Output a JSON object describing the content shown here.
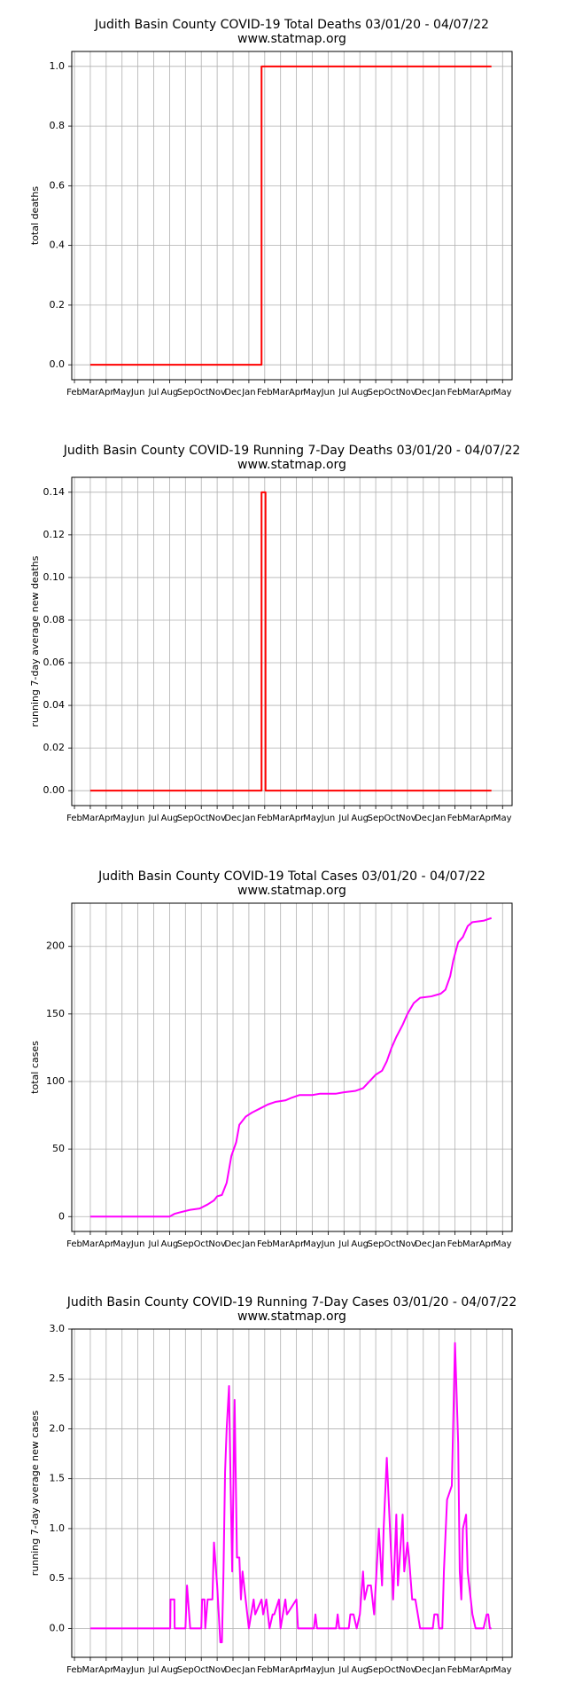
{
  "chart_data": [
    {
      "type": "line",
      "title": "Judith Basin County COVID-19 Total Deaths 03/01/20 - 04/07/22",
      "subtitle": "www.statmap.org",
      "y_label": "total deaths",
      "color": "#ff0000",
      "grid": true,
      "x": [
        1,
        11.8,
        11.8,
        26.3
      ],
      "values": [
        0,
        0,
        1,
        1
      ],
      "xlim": [
        -0.17,
        27.6
      ],
      "ylim": [
        -0.05,
        1.05
      ],
      "xticks": [
        {
          "value": 0,
          "label": "Feb"
        },
        {
          "value": 1,
          "label": "Mar"
        },
        {
          "value": 2,
          "label": "Apr"
        },
        {
          "value": 3,
          "label": "May"
        },
        {
          "value": 4,
          "label": "Jun"
        },
        {
          "value": 5,
          "label": "Jul"
        },
        {
          "value": 6,
          "label": "Aug"
        },
        {
          "value": 7,
          "label": "Sep"
        },
        {
          "value": 8,
          "label": "Oct"
        },
        {
          "value": 9,
          "label": "Nov"
        },
        {
          "value": 10,
          "label": "Dec"
        },
        {
          "value": 11,
          "label": "Jan"
        },
        {
          "value": 12,
          "label": "Feb"
        },
        {
          "value": 13,
          "label": "Mar"
        },
        {
          "value": 14,
          "label": "Apr"
        },
        {
          "value": 15,
          "label": "May"
        },
        {
          "value": 16,
          "label": "Jun"
        },
        {
          "value": 17,
          "label": "Jul"
        },
        {
          "value": 18,
          "label": "Aug"
        },
        {
          "value": 19,
          "label": "Sep"
        },
        {
          "value": 20,
          "label": "Oct"
        },
        {
          "value": 21,
          "label": "Nov"
        },
        {
          "value": 22,
          "label": "Dec"
        },
        {
          "value": 23,
          "label": "Jan"
        },
        {
          "value": 24,
          "label": "Feb"
        },
        {
          "value": 25,
          "label": "Mar"
        },
        {
          "value": 26,
          "label": "Apr"
        },
        {
          "value": 27,
          "label": "May"
        }
      ],
      "yticks": [
        {
          "value": 0,
          "label": "0.0"
        },
        {
          "value": 0.2,
          "label": "0.2"
        },
        {
          "value": 0.4,
          "label": "0.4"
        },
        {
          "value": 0.6,
          "label": "0.6"
        },
        {
          "value": 0.8,
          "label": "0.8"
        },
        {
          "value": 1,
          "label": "1.0"
        }
      ]
    },
    {
      "type": "line",
      "title": "Judith Basin County COVID-19 Running 7-Day Deaths 03/01/20 - 04/07/22",
      "subtitle": "www.statmap.org",
      "y_label": "running 7-day average new deaths",
      "color": "#ff0000",
      "grid": true,
      "x": [
        1,
        11.8,
        11.8,
        12.05,
        12.05,
        26.3
      ],
      "values": [
        0,
        0,
        0.14,
        0.14,
        0,
        0
      ],
      "xlim": [
        -0.17,
        27.6
      ],
      "ylim": [
        -0.007,
        0.147
      ],
      "xticks": [
        {
          "value": 0,
          "label": "Feb"
        },
        {
          "value": 1,
          "label": "Mar"
        },
        {
          "value": 2,
          "label": "Apr"
        },
        {
          "value": 3,
          "label": "May"
        },
        {
          "value": 4,
          "label": "Jun"
        },
        {
          "value": 5,
          "label": "Jul"
        },
        {
          "value": 6,
          "label": "Aug"
        },
        {
          "value": 7,
          "label": "Sep"
        },
        {
          "value": 8,
          "label": "Oct"
        },
        {
          "value": 9,
          "label": "Nov"
        },
        {
          "value": 10,
          "label": "Dec"
        },
        {
          "value": 11,
          "label": "Jan"
        },
        {
          "value": 12,
          "label": "Feb"
        },
        {
          "value": 13,
          "label": "Mar"
        },
        {
          "value": 14,
          "label": "Apr"
        },
        {
          "value": 15,
          "label": "May"
        },
        {
          "value": 16,
          "label": "Jun"
        },
        {
          "value": 17,
          "label": "Jul"
        },
        {
          "value": 18,
          "label": "Aug"
        },
        {
          "value": 19,
          "label": "Sep"
        },
        {
          "value": 20,
          "label": "Oct"
        },
        {
          "value": 21,
          "label": "Nov"
        },
        {
          "value": 22,
          "label": "Dec"
        },
        {
          "value": 23,
          "label": "Jan"
        },
        {
          "value": 24,
          "label": "Feb"
        },
        {
          "value": 25,
          "label": "Mar"
        },
        {
          "value": 26,
          "label": "Apr"
        },
        {
          "value": 27,
          "label": "May"
        }
      ],
      "yticks": [
        {
          "value": 0,
          "label": "0.00"
        },
        {
          "value": 0.02,
          "label": "0.02"
        },
        {
          "value": 0.04,
          "label": "0.04"
        },
        {
          "value": 0.06,
          "label": "0.06"
        },
        {
          "value": 0.08,
          "label": "0.08"
        },
        {
          "value": 0.1,
          "label": "0.10"
        },
        {
          "value": 0.12,
          "label": "0.12"
        },
        {
          "value": 0.14,
          "label": "0.14"
        }
      ]
    },
    {
      "type": "line",
      "title": "Judith Basin County COVID-19 Total Cases 03/01/20 - 04/07/22",
      "subtitle": "www.statmap.org",
      "y_label": "total cases",
      "color": "#ff00ff",
      "grid": true,
      "x": [
        1,
        6.0,
        6.3,
        6.6,
        7.3,
        7.9,
        8.4,
        8.8,
        9.0,
        9.3,
        9.6,
        9.9,
        10.2,
        10.4,
        10.8,
        11.2,
        11.7,
        12.2,
        12.7,
        13.3,
        13.7,
        14.2,
        15.0,
        15.5,
        16.5,
        17.0,
        17.7,
        18.2,
        18.6,
        19.0,
        19.4,
        19.7,
        20.0,
        20.3,
        20.7,
        21.0,
        21.4,
        21.8,
        22.5,
        23.1,
        23.4,
        23.7,
        23.9,
        24.2,
        24.5,
        24.8,
        25.1,
        25.8,
        26.3
      ],
      "values": [
        0,
        0,
        2,
        3,
        5,
        6,
        9,
        12,
        15,
        16,
        25,
        45,
        55,
        68,
        74,
        77,
        80,
        83,
        85,
        86,
        88,
        90,
        90,
        91,
        91,
        92,
        93,
        95,
        100,
        105,
        108,
        115,
        125,
        133,
        142,
        150,
        158,
        162,
        163,
        165,
        168,
        178,
        190,
        203,
        207,
        215,
        218,
        219,
        221
      ],
      "xlim": [
        -0.17,
        27.6
      ],
      "ylim": [
        -11,
        232
      ],
      "xticks": [
        {
          "value": 0,
          "label": "Feb"
        },
        {
          "value": 1,
          "label": "Mar"
        },
        {
          "value": 2,
          "label": "Apr"
        },
        {
          "value": 3,
          "label": "May"
        },
        {
          "value": 4,
          "label": "Jun"
        },
        {
          "value": 5,
          "label": "Jul"
        },
        {
          "value": 6,
          "label": "Aug"
        },
        {
          "value": 7,
          "label": "Sep"
        },
        {
          "value": 8,
          "label": "Oct"
        },
        {
          "value": 9,
          "label": "Nov"
        },
        {
          "value": 10,
          "label": "Dec"
        },
        {
          "value": 11,
          "label": "Jan"
        },
        {
          "value": 12,
          "label": "Feb"
        },
        {
          "value": 13,
          "label": "Mar"
        },
        {
          "value": 14,
          "label": "Apr"
        },
        {
          "value": 15,
          "label": "May"
        },
        {
          "value": 16,
          "label": "Jun"
        },
        {
          "value": 17,
          "label": "Jul"
        },
        {
          "value": 18,
          "label": "Aug"
        },
        {
          "value": 19,
          "label": "Sep"
        },
        {
          "value": 20,
          "label": "Oct"
        },
        {
          "value": 21,
          "label": "Nov"
        },
        {
          "value": 22,
          "label": "Dec"
        },
        {
          "value": 23,
          "label": "Jan"
        },
        {
          "value": 24,
          "label": "Feb"
        },
        {
          "value": 25,
          "label": "Mar"
        },
        {
          "value": 26,
          "label": "Apr"
        },
        {
          "value": 27,
          "label": "May"
        }
      ],
      "yticks": [
        0,
        50,
        100,
        150,
        200
      ]
    },
    {
      "type": "line",
      "title": "Judith Basin County COVID-19 Running 7-Day Cases 03/01/20 - 04/07/22",
      "subtitle": "www.statmap.org",
      "y_label": "running 7-day average new cases",
      "color": "#ff00ff",
      "grid": true,
      "x": [
        1,
        6.04,
        6.06,
        6.3,
        6.32,
        7.0,
        7.1,
        7.3,
        8.0,
        8.05,
        8.2,
        8.25,
        8.4,
        8.7,
        8.8,
        9.0,
        9.2,
        9.3,
        9.4,
        9.5,
        9.6,
        9.75,
        9.85,
        9.95,
        10.1,
        10.25,
        10.4,
        10.5,
        10.6,
        11.0,
        11.3,
        11.4,
        11.8,
        11.9,
        12.1,
        12.3,
        12.5,
        12.6,
        12.9,
        13.0,
        13.3,
        13.4,
        14.0,
        14.1,
        14.6,
        15.1,
        15.2,
        15.3,
        16.5,
        16.6,
        16.7,
        17.3,
        17.4,
        17.6,
        17.8,
        18.0,
        18.2,
        18.3,
        18.5,
        18.7,
        18.9,
        19.2,
        19.4,
        19.5,
        19.7,
        20.1,
        20.3,
        20.4,
        20.7,
        20.8,
        21.0,
        21.1,
        21.3,
        21.5,
        21.8,
        22.1,
        22.6,
        22.7,
        22.9,
        23.0,
        23.2,
        23.3,
        23.5,
        23.8,
        24.0,
        24.2,
        24.3,
        24.4,
        24.5,
        24.7,
        24.8,
        25.1,
        25.3,
        25.8,
        26.0,
        26.1,
        26.2,
        26.3
      ],
      "values": [
        0,
        0,
        0.29,
        0.29,
        0,
        0,
        0.43,
        0,
        0,
        0.29,
        0.29,
        0,
        0.29,
        0.29,
        0.86,
        0.43,
        -0.14,
        -0.14,
        0.57,
        1.57,
        2.0,
        2.43,
        1.43,
        0.57,
        2.29,
        0.71,
        0.71,
        0.29,
        0.57,
        0,
        0.29,
        0.14,
        0.29,
        0.14,
        0.29,
        0,
        0.14,
        0.14,
        0.29,
        0,
        0.29,
        0.14,
        0.29,
        0,
        0,
        0,
        0.14,
        0,
        0,
        0.14,
        0,
        0,
        0.14,
        0.14,
        0,
        0.14,
        0.57,
        0.29,
        0.43,
        0.43,
        0.14,
        1.0,
        0.43,
        1.0,
        1.71,
        0.29,
        1.14,
        0.43,
        1.14,
        0.57,
        0.86,
        0.71,
        0.29,
        0.29,
        0,
        0,
        0,
        0.14,
        0.14,
        0,
        0,
        0.57,
        1.29,
        1.43,
        2.86,
        1.86,
        0.57,
        0.29,
        1.0,
        1.14,
        0.57,
        0.14,
        0,
        0,
        0.14,
        0.14,
        0,
        0
      ],
      "xlim": [
        -0.17,
        27.6
      ],
      "ylim": [
        -0.29,
        3.0
      ],
      "xticks": [
        {
          "value": 0,
          "label": "Feb"
        },
        {
          "value": 1,
          "label": "Mar"
        },
        {
          "value": 2,
          "label": "Apr"
        },
        {
          "value": 3,
          "label": "May"
        },
        {
          "value": 4,
          "label": "Jun"
        },
        {
          "value": 5,
          "label": "Jul"
        },
        {
          "value": 6,
          "label": "Aug"
        },
        {
          "value": 7,
          "label": "Sep"
        },
        {
          "value": 8,
          "label": "Oct"
        },
        {
          "value": 9,
          "label": "Nov"
        },
        {
          "value": 10,
          "label": "Dec"
        },
        {
          "value": 11,
          "label": "Jan"
        },
        {
          "value": 12,
          "label": "Feb"
        },
        {
          "value": 13,
          "label": "Mar"
        },
        {
          "value": 14,
          "label": "Apr"
        },
        {
          "value": 15,
          "label": "May"
        },
        {
          "value": 16,
          "label": "Jun"
        },
        {
          "value": 17,
          "label": "Jul"
        },
        {
          "value": 18,
          "label": "Aug"
        },
        {
          "value": 19,
          "label": "Sep"
        },
        {
          "value": 20,
          "label": "Oct"
        },
        {
          "value": 21,
          "label": "Nov"
        },
        {
          "value": 22,
          "label": "Dec"
        },
        {
          "value": 23,
          "label": "Jan"
        },
        {
          "value": 24,
          "label": "Feb"
        },
        {
          "value": 25,
          "label": "Mar"
        },
        {
          "value": 26,
          "label": "Apr"
        },
        {
          "value": 27,
          "label": "May"
        }
      ],
      "yticks": [
        {
          "value": 0,
          "label": "0.0"
        },
        {
          "value": 0.5,
          "label": "0.5"
        },
        {
          "value": 1,
          "label": "1.0"
        },
        {
          "value": 1.5,
          "label": "1.5"
        },
        {
          "value": 2,
          "label": "2.0"
        },
        {
          "value": 2.5,
          "label": "2.5"
        },
        {
          "value": 3,
          "label": "3.0"
        }
      ]
    }
  ]
}
